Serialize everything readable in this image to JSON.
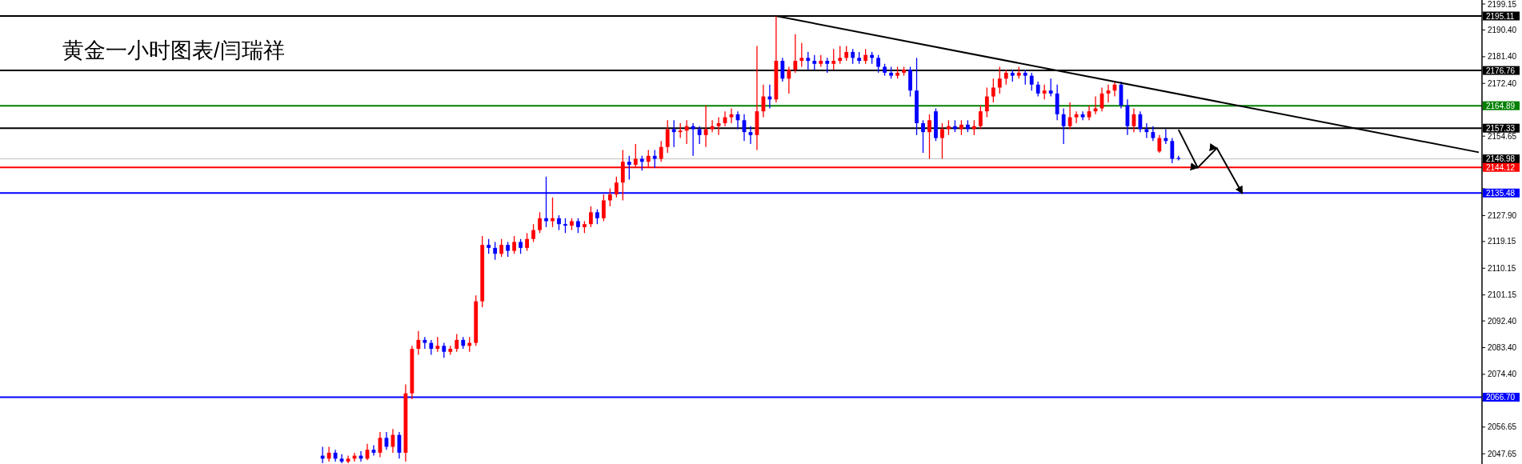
{
  "chart_data": {
    "type": "candlestick",
    "title": "黄金一小时图表/闫瑞祥",
    "ylim": [
      2044.2,
      2200.5
    ],
    "tick_labels": "y",
    "grid": false,
    "yticks": [
      {
        "value": 2199.15,
        "label": "2199.15"
      },
      {
        "value": 2190.4,
        "label": "2190.40"
      },
      {
        "value": 2181.4,
        "label": "2181.40"
      },
      {
        "value": 2172.4,
        "label": "2172.40"
      },
      {
        "value": 2163.65,
        "label": null
      },
      {
        "value": 2154.65,
        "label": "2154.65"
      },
      {
        "value": 2145.9,
        "label": null
      },
      {
        "value": 2136.9,
        "label": null
      },
      {
        "value": 2127.9,
        "label": "2127.90"
      },
      {
        "value": 2119.15,
        "label": "2119.15"
      },
      {
        "value": 2110.15,
        "label": "2110.15"
      },
      {
        "value": 2101.15,
        "label": "2101.15"
      },
      {
        "value": 2092.4,
        "label": "2092.40"
      },
      {
        "value": 2083.4,
        "label": "2083.40"
      },
      {
        "value": 2074.4,
        "label": "2074.40"
      },
      {
        "value": 2065.65,
        "label": null
      },
      {
        "value": 2056.65,
        "label": "2056.65"
      },
      {
        "value": 2047.65,
        "label": "2047.65"
      }
    ],
    "categories": [
      null,
      null,
      null,
      null,
      null,
      null,
      null,
      null,
      null,
      null,
      null,
      null,
      null,
      null,
      null,
      null,
      null,
      null,
      null,
      null,
      null,
      null,
      null,
      null,
      null,
      null,
      null,
      null,
      null,
      null,
      null,
      null,
      null,
      null,
      null,
      null,
      null,
      null,
      null,
      null,
      null,
      null,
      null,
      null,
      null,
      null,
      null,
      null,
      null,
      null,
      null,
      null,
      null,
      null,
      null,
      null,
      null,
      null,
      null,
      null,
      null,
      null,
      null,
      null,
      null,
      null,
      null,
      null,
      null,
      null,
      null,
      null,
      null,
      null,
      null,
      null,
      null,
      null,
      null,
      null,
      null,
      null,
      null,
      null,
      null,
      null,
      null,
      null,
      null,
      null,
      null,
      null,
      null,
      null,
      null,
      null,
      null,
      null,
      null,
      null,
      null,
      null,
      null,
      null,
      null,
      null,
      null,
      null,
      null,
      null,
      null,
      null,
      null,
      null,
      null,
      null,
      null,
      null,
      null,
      null,
      null,
      null,
      null,
      null,
      null,
      null,
      null,
      null,
      null,
      null,
      null,
      null,
      null,
      null,
      null,
      null,
      null,
      null,
      null,
      null,
      null,
      null,
      null,
      null,
      null,
      null,
      null,
      null,
      null,
      null,
      null,
      null,
      null,
      null,
      null,
      null,
      null,
      null,
      null,
      null,
      null,
      null,
      null,
      null,
      null,
      null,
      null,
      null,
      null,
      null,
      null,
      null,
      null,
      null,
      null,
      null,
      null,
      null,
      null,
      null,
      null,
      null,
      null,
      null,
      null,
      null,
      null,
      null,
      null,
      null,
      null,
      null,
      null,
      null,
      null,
      null,
      null,
      null,
      null,
      null,
      null,
      null,
      null,
      null,
      null,
      null,
      null,
      null,
      null,
      null,
      null,
      null,
      null,
      null,
      null,
      null,
      null,
      null,
      null,
      null,
      null,
      null,
      null,
      null,
      null,
      null,
      null,
      null,
      null,
      null,
      null,
      null
    ],
    "ohlc": [
      null,
      null,
      null,
      null,
      null,
      null,
      null,
      null,
      null,
      null,
      null,
      null,
      null,
      null,
      null,
      null,
      null,
      null,
      null,
      null,
      null,
      null,
      null,
      null,
      null,
      null,
      null,
      null,
      null,
      null,
      null,
      null,
      null,
      null,
      null,
      null,
      null,
      null,
      null,
      null,
      null,
      null,
      null,
      null,
      null,
      null,
      null,
      null,
      null,
      null,
      [
        2047,
        2050,
        2044.5,
        2046
      ],
      [
        2046,
        2050,
        2045,
        2048
      ],
      [
        2048,
        2049,
        2045,
        2046
      ],
      [
        2046,
        2047.5,
        2044.5,
        2045
      ],
      [
        2045,
        2047,
        2044.5,
        2046
      ],
      [
        2046,
        2048,
        2045,
        2047
      ],
      [
        2047,
        2048.5,
        2045,
        2046
      ],
      [
        2046,
        2051,
        2045.5,
        2049
      ],
      [
        2049,
        2050.5,
        2047,
        2048
      ],
      [
        2048,
        2055,
        2046.5,
        2053
      ],
      [
        2053,
        2055,
        2049,
        2050
      ],
      [
        2050,
        2056,
        2048,
        2054
      ],
      [
        2054,
        2055,
        2046,
        2048
      ],
      [
        2048,
        2071,
        2045,
        2068
      ],
      [
        2068,
        2084,
        2066,
        2083
      ],
      [
        2083,
        2089,
        2081,
        2086
      ],
      [
        2086,
        2087,
        2083,
        2085
      ],
      [
        2085,
        2086,
        2081,
        2083
      ],
      [
        2083,
        2087,
        2082,
        2084
      ],
      [
        2084,
        2085,
        2080,
        2082
      ],
      [
        2082,
        2084,
        2081,
        2083
      ],
      [
        2083,
        2088,
        2082,
        2086
      ],
      [
        2086,
        2087,
        2083,
        2084
      ],
      [
        2084,
        2087,
        2082,
        2085
      ],
      [
        2085,
        2101,
        2084,
        2099
      ],
      [
        2099,
        2121,
        2097,
        2118
      ],
      [
        2118,
        2120,
        2115,
        2117
      ],
      [
        2117,
        2119,
        2113,
        2115
      ],
      [
        2115,
        2120,
        2114,
        2118
      ],
      [
        2118,
        2119,
        2114,
        2116
      ],
      [
        2116,
        2121,
        2115,
        2119
      ],
      [
        2119,
        2120,
        2115,
        2117
      ],
      [
        2117,
        2122,
        2116,
        2120
      ],
      [
        2120,
        2125,
        2119,
        2123
      ],
      [
        2123,
        2129,
        2122,
        2127
      ],
      [
        2127,
        2141,
        2124,
        2126
      ],
      [
        2126,
        2134,
        2124,
        2127
      ],
      [
        2127,
        2128,
        2123,
        2125
      ],
      [
        2125,
        2127,
        2122,
        2124.5
      ],
      [
        2124.5,
        2127,
        2123,
        2126
      ],
      [
        2126,
        2127,
        2122,
        2124
      ],
      [
        2124,
        2126,
        2122,
        2125
      ],
      [
        2125,
        2131,
        2124,
        2129
      ],
      [
        2129,
        2130,
        2125,
        2127
      ],
      [
        2127,
        2135,
        2126,
        2133
      ],
      [
        2133,
        2137,
        2131,
        2135
      ],
      [
        2135,
        2141,
        2134,
        2139
      ],
      [
        2139,
        2150,
        2133,
        2146
      ],
      [
        2146,
        2148,
        2140,
        2145
      ],
      [
        2145,
        2152,
        2144,
        2147
      ],
      [
        2147,
        2148,
        2143,
        2146
      ],
      [
        2146,
        2150,
        2144,
        2148
      ],
      [
        2148,
        2150,
        2144,
        2147
      ],
      [
        2147,
        2153,
        2146,
        2151
      ],
      [
        2151,
        2160,
        2149,
        2157
      ],
      [
        2157,
        2160,
        2151,
        2156
      ],
      [
        2156,
        2159,
        2154,
        2156.5
      ],
      [
        2156.5,
        2160,
        2152,
        2158
      ],
      [
        2158,
        2159,
        2148,
        2157
      ],
      [
        2157,
        2158,
        2152,
        2155
      ],
      [
        2155,
        2165,
        2151,
        2157
      ],
      [
        2157,
        2160,
        2156,
        2158
      ],
      [
        2158,
        2161,
        2155,
        2159
      ],
      [
        2159,
        2163,
        2158,
        2161
      ],
      [
        2161,
        2164,
        2159,
        2162
      ],
      [
        2162,
        2163,
        2157,
        2160
      ],
      [
        2160,
        2162,
        2153,
        2156
      ],
      [
        2156,
        2158,
        2152,
        2155
      ],
      [
        2155,
        2185,
        2150,
        2163
      ],
      [
        2163,
        2172,
        2161,
        2168
      ],
      [
        2168,
        2172,
        2164,
        2167
      ],
      [
        2167,
        2195.11,
        2166,
        2180
      ],
      [
        2180,
        2181,
        2173,
        2174
      ],
      [
        2174,
        2178,
        2169,
        2177
      ],
      [
        2177,
        2189,
        2176,
        2180
      ],
      [
        2180,
        2186,
        2178,
        2181
      ],
      [
        2181,
        2183,
        2177,
        2180
      ],
      [
        2180,
        2182,
        2177,
        2179
      ],
      [
        2179,
        2182,
        2178,
        2180
      ],
      [
        2180,
        2181,
        2176,
        2179
      ],
      [
        2179,
        2184,
        2177,
        2180
      ],
      [
        2180,
        2185,
        2179,
        2181
      ],
      [
        2181,
        2185,
        2180,
        2183
      ],
      [
        2183,
        2184,
        2179,
        2181
      ],
      [
        2181,
        2183,
        2179,
        2180
      ],
      [
        2180,
        2184,
        2179,
        2182
      ],
      [
        2182,
        2183,
        2179,
        2181
      ],
      [
        2181,
        2182,
        2176,
        2178
      ],
      [
        2178,
        2179,
        2175,
        2176
      ],
      [
        2176,
        2178,
        2174,
        2175
      ],
      [
        2175,
        2178,
        2174,
        2176
      ],
      [
        2176,
        2178,
        2175,
        2177
      ],
      [
        2177,
        2178,
        2168,
        2170
      ],
      [
        2170,
        2181,
        2155,
        2159
      ],
      [
        2159,
        2160,
        2149,
        2156
      ],
      [
        2156,
        2162,
        2147,
        2160
      ],
      [
        2163,
        2164,
        2153,
        2154
      ],
      [
        2154,
        2159,
        2147,
        2157
      ],
      [
        2157,
        2160,
        2155,
        2158
      ],
      [
        2158,
        2160,
        2156,
        2157
      ],
      [
        2157,
        2160,
        2155,
        2158.5
      ],
      [
        2158.5,
        2160,
        2156,
        2157
      ],
      [
        2157,
        2160,
        2155,
        2158
      ],
      [
        2158,
        2165,
        2157,
        2163
      ],
      [
        2163,
        2171,
        2161,
        2168
      ],
      [
        2168,
        2174,
        2166,
        2171
      ],
      [
        2171,
        2178,
        2169,
        2174
      ],
      [
        2174,
        2177,
        2172,
        2176
      ],
      [
        2176,
        2177,
        2173,
        2175
      ],
      [
        2175,
        2178,
        2174,
        2176
      ],
      [
        2176,
        2177,
        2172,
        2175
      ],
      [
        2175,
        2176,
        2170,
        2172
      ],
      [
        2172,
        2173,
        2168,
        2169
      ],
      [
        2169,
        2172,
        2167,
        2170
      ],
      [
        2170,
        2174,
        2168,
        2169
      ],
      [
        2169,
        2172,
        2160,
        2162
      ],
      [
        2162,
        2164,
        2152,
        2158
      ],
      [
        2158,
        2166,
        2157,
        2161
      ],
      [
        2161,
        2163,
        2159,
        2162
      ],
      [
        2162,
        2163,
        2160,
        2161
      ],
      [
        2161,
        2165,
        2160,
        2163
      ],
      [
        2163,
        2168,
        2162,
        2164
      ],
      [
        2164,
        2171,
        2163,
        2169
      ],
      [
        2169,
        2172,
        2166,
        2170
      ],
      [
        2170,
        2173,
        2168,
        2172
      ],
      [
        2172,
        2173,
        2164,
        2165
      ],
      [
        2165,
        2167,
        2155,
        2158
      ],
      [
        2158,
        2164,
        2156,
        2162
      ],
      [
        2162,
        2163,
        2156,
        2157
      ],
      [
        2157,
        2159,
        2154,
        2156
      ],
      [
        2156,
        2158,
        2153,
        2154
      ],
      [
        2149.5,
        2155,
        2149,
        2154
      ],
      [
        2154,
        2157,
        2152,
        2153
      ],
      [
        2153,
        2154,
        2145.5,
        2147
      ],
      [
        2147.3,
        2148,
        2146.5,
        2146.98
      ],
      null,
      null,
      null,
      null,
      null,
      null,
      null,
      null,
      null,
      null,
      null,
      null,
      null,
      null,
      null,
      null,
      null,
      null,
      null,
      null,
      null,
      null,
      null,
      null,
      null,
      null,
      null,
      null,
      null,
      null,
      null,
      null,
      null,
      null,
      null,
      null,
      null,
      null,
      null,
      null,
      null,
      null,
      null,
      null,
      null,
      null,
      null
    ],
    "colors": [
      null,
      null,
      null,
      null,
      null,
      null,
      null,
      null,
      null,
      null,
      null,
      null,
      null,
      null,
      null,
      null,
      null,
      null,
      null,
      null,
      null,
      null,
      null,
      null,
      null,
      null,
      null,
      null,
      null,
      null,
      null,
      null,
      null,
      null,
      null,
      null,
      null,
      null,
      null,
      null,
      null,
      null,
      null,
      null,
      null,
      null,
      null,
      null,
      null,
      null,
      "#0000ff",
      "#ff0000",
      "#0000ff",
      "#0000ff",
      "#ff0000",
      "#ff0000",
      "#0000ff",
      "#ff0000",
      "#0000ff",
      "#ff0000",
      "#0000ff",
      "#ff0000",
      "#0000ff",
      "#ff0000",
      "#ff0000",
      "#ff0000",
      "#0000ff",
      "#0000ff",
      "#ff0000",
      "#0000ff",
      "#ff0000",
      "#ff0000",
      "#0000ff",
      "#ff0000",
      "#ff0000",
      "#ff0000",
      "#0000ff",
      "#0000ff",
      "#ff0000",
      "#0000ff",
      "#ff0000",
      "#0000ff",
      "#ff0000",
      "#ff0000",
      "#ff0000",
      "#0000ff",
      "#ff0000",
      "#0000ff",
      "#0000ff",
      "#ff0000",
      "#0000ff",
      "#ff0000",
      "#ff0000",
      "#0000ff",
      "#ff0000",
      "#ff0000",
      "#ff0000",
      "#ff0000",
      "#0000ff",
      "#ff0000",
      "#0000ff",
      "#ff0000",
      "#0000ff",
      "#ff0000",
      "#ff0000",
      "#0000ff",
      "#ff0000",
      "#ff0000",
      "#0000ff",
      "#0000ff",
      "#ff0000",
      "#ff0000",
      "#ff0000",
      "#ff0000",
      "#ff0000",
      "#0000ff",
      "#0000ff",
      "#0000ff",
      "#ff0000",
      "#ff0000",
      "#0000ff",
      "#ff0000",
      "#0000ff",
      "#ff0000",
      "#ff0000",
      "#ff0000",
      "#0000ff",
      "#0000ff",
      "#ff0000",
      "#0000ff",
      "#ff0000",
      "#ff0000",
      "#ff0000",
      "#0000ff",
      "#0000ff",
      "#ff0000",
      "#0000ff",
      "#0000ff",
      "#0000ff",
      "#0000ff",
      "#ff0000",
      "#ff0000",
      "#0000ff",
      "#0000ff",
      "#0000ff",
      "#ff0000",
      "#0000ff",
      "#ff0000",
      "#ff0000",
      "#0000ff",
      "#ff0000",
      "#0000ff",
      "#ff0000",
      "#ff0000",
      "#ff0000",
      "#ff0000",
      "#ff0000",
      "#ff0000",
      "#0000ff",
      "#ff0000",
      "#0000ff",
      "#0000ff",
      "#0000ff",
      "#ff0000",
      "#0000ff",
      "#0000ff",
      "#0000ff",
      "#ff0000",
      "#ff0000",
      "#0000ff",
      "#ff0000",
      "#ff0000",
      "#ff0000",
      "#ff0000",
      "#ff0000",
      "#0000ff",
      "#0000ff",
      "#ff0000",
      "#0000ff",
      "#0000ff",
      "#0000ff",
      "#ff0000",
      "#0000ff",
      "#0000ff",
      "#0000ff",
      null,
      null,
      null,
      null,
      null,
      null,
      null,
      null,
      null,
      null,
      null,
      null,
      null,
      null,
      null,
      null,
      null,
      null,
      null,
      null,
      null,
      null,
      null,
      null,
      null,
      null,
      null,
      null,
      null,
      null,
      null,
      null,
      null,
      null,
      null,
      null,
      null,
      null,
      null,
      null,
      null,
      null,
      null,
      null,
      null,
      null,
      null
    ],
    "series": [
      {
        "type": "line",
        "color": "#000000",
        "values": [
          null,
          null,
          null,
          null,
          null,
          null,
          null,
          null,
          null,
          null,
          null,
          null,
          null,
          null,
          null,
          null,
          null,
          null,
          null,
          null,
          null,
          null,
          null,
          null,
          null,
          null,
          null,
          null,
          null,
          null,
          null,
          null,
          null,
          null,
          null,
          null,
          null,
          null,
          null,
          null,
          null,
          null,
          null,
          null,
          null,
          null,
          null,
          null,
          null,
          null,
          null,
          null,
          null,
          null,
          null,
          null,
          null,
          null,
          null,
          null,
          null,
          null,
          null,
          null,
          null,
          null,
          null,
          null,
          null,
          null,
          null,
          null,
          null,
          null,
          null,
          null,
          null,
          null,
          null,
          null,
          null,
          null,
          null,
          null,
          null,
          null,
          null,
          null,
          null,
          null,
          null,
          null,
          null,
          null,
          null,
          null,
          null,
          null,
          null,
          null,
          null,
          null,
          null,
          null,
          null,
          null,
          null,
          null,
          null,
          null,
          null,
          null,
          null,
          null,
          null,
          null,
          null,
          null,
          null,
          null,
          null,
          2195.11,
          null,
          null,
          null,
          null,
          null,
          null,
          null,
          null,
          null,
          null,
          null,
          null,
          null,
          null,
          null,
          null,
          null,
          null,
          null,
          null,
          null,
          null,
          null,
          null,
          null,
          null,
          null,
          null,
          null,
          null,
          null,
          null,
          null,
          null,
          null,
          null,
          null,
          null,
          null,
          null,
          null,
          null,
          null,
          null,
          null,
          null,
          null,
          null,
          null,
          null,
          null,
          null,
          null,
          null,
          null,
          null,
          null,
          null,
          null,
          null,
          null,
          null,
          null,
          null,
          null,
          null,
          null,
          null,
          null,
          null,
          null,
          null,
          null,
          null,
          null,
          null,
          null,
          null,
          null,
          null,
          null,
          null,
          null,
          null,
          null,
          null,
          null,
          null,
          null,
          null,
          null,
          null,
          null,
          null,
          null,
          null,
          null,
          null,
          null,
          null,
          null,
          null,
          null,
          null,
          null,
          null,
          null,
          null,
          null,
          2149.2
        ]
      },
      {
        "type": "line",
        "color": "#000000",
        "values": [
          null,
          null,
          null,
          null,
          null,
          null,
          null,
          null,
          null,
          null,
          null,
          null,
          null,
          null,
          null,
          null,
          null,
          null,
          null,
          null,
          null,
          null,
          null,
          null,
          null,
          null,
          null,
          null,
          null,
          null,
          null,
          null,
          null,
          null,
          null,
          null,
          null,
          null,
          null,
          null,
          null,
          null,
          null,
          null,
          null,
          null,
          null,
          null,
          null,
          null,
          null,
          null,
          null,
          null,
          null,
          null,
          null,
          null,
          null,
          null,
          null,
          null,
          null,
          null,
          null,
          null,
          null,
          null,
          null,
          null,
          null,
          null,
          null,
          null,
          null,
          null,
          null,
          null,
          null,
          null,
          null,
          null,
          null,
          null,
          null,
          null,
          null,
          null,
          null,
          null,
          null,
          null,
          null,
          null,
          null,
          null,
          null,
          null,
          null,
          null,
          null,
          null,
          null,
          null,
          null,
          null,
          null,
          null,
          null,
          null,
          null,
          null,
          null,
          null,
          null,
          null,
          null,
          null,
          null,
          null,
          null,
          null,
          null,
          null,
          null,
          null,
          null,
          null,
          null,
          null,
          null,
          null,
          null,
          null,
          null,
          null,
          null,
          null,
          null,
          null,
          null,
          null,
          null,
          null,
          null,
          null,
          null,
          null,
          null,
          null,
          null,
          null,
          null,
          null,
          null,
          null,
          null,
          null,
          null,
          null,
          null,
          null,
          null,
          null,
          null,
          null,
          null,
          null,
          null,
          null,
          null,
          null,
          null,
          null,
          null,
          null,
          null,
          null,
          null,
          null,
          null,
          null,
          null,
          null,
          2156.8,
          null,
          null,
          2144,
          null,
          null,
          2150.6,
          null,
          null,
          null,
          2135.3,
          null,
          null,
          null,
          null,
          null,
          null,
          null,
          null,
          null,
          null,
          null,
          null,
          null,
          null,
          null,
          null,
          null,
          null,
          null,
          null,
          null,
          null,
          null,
          null,
          null,
          null,
          null,
          null,
          null,
          null,
          null,
          null,
          null,
          null,
          null,
          null,
          null
        ]
      }
    ],
    "ref_lines": [
      {
        "axis": "y",
        "value": 2195.11,
        "label": "2195.11",
        "color": "#000000"
      },
      {
        "axis": "y",
        "value": 2176.76,
        "label": "2176.76",
        "color": "#000000"
      },
      {
        "axis": "y",
        "value": 2164.89,
        "label": "2164.89",
        "color": "#008000"
      },
      {
        "axis": "y",
        "value": 2157.33,
        "label": "2157.33",
        "color": "#000000"
      },
      {
        "axis": "y",
        "value": 2146.98,
        "label": "2146.98",
        "color": "#c0c0c0"
      },
      {
        "axis": "y",
        "value": 2144.12,
        "label": "2144.12",
        "color": "#ff0000"
      },
      {
        "axis": "y",
        "value": 2135.48,
        "label": "2135.48",
        "color": "#0000ff"
      },
      {
        "axis": "y",
        "value": 2066.7,
        "label": "2066.70",
        "color": "#0000ff"
      }
    ]
  }
}
